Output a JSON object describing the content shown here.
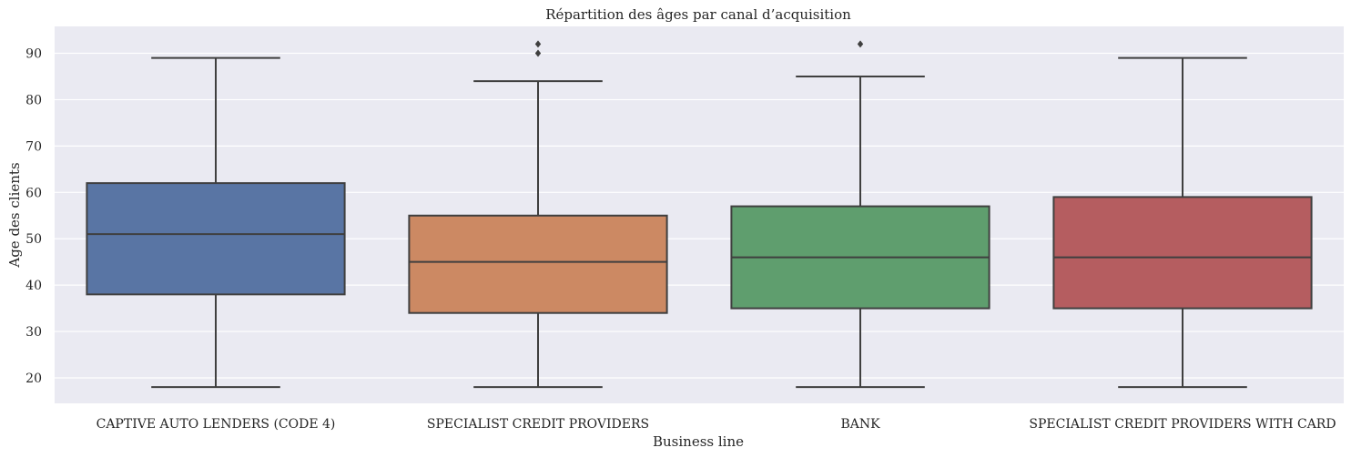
{
  "chart_data": {
    "type": "box",
    "title": "Répartition des âges par canal d’acquisition",
    "xlabel": "Business line",
    "ylabel": "Age des clients",
    "ylim": [
      14.5,
      95.8
    ],
    "yticks": [
      20,
      30,
      40,
      50,
      60,
      70,
      80,
      90
    ],
    "grid": true,
    "categories": [
      "CAPTIVE AUTO LENDERS (CODE 4)",
      "SPECIALIST CREDIT PROVIDERS",
      "BANK",
      "SPECIALIST CREDIT PROVIDERS WITH CARD"
    ],
    "colors": [
      "#5975a4",
      "#cc8963",
      "#5f9e6e",
      "#b55d60"
    ],
    "boxes": [
      {
        "category": "CAPTIVE AUTO LENDERS (CODE 4)",
        "whisker_low": 18,
        "q1": 38,
        "median": 51,
        "q3": 62,
        "whisker_high": 89,
        "outliers": []
      },
      {
        "category": "SPECIALIST CREDIT PROVIDERS",
        "whisker_low": 18,
        "q1": 34,
        "median": 45,
        "q3": 55,
        "whisker_high": 84,
        "outliers": [
          90,
          92
        ]
      },
      {
        "category": "BANK",
        "whisker_low": 18,
        "q1": 35,
        "median": 46,
        "q3": 57,
        "whisker_high": 85,
        "outliers": [
          92
        ]
      },
      {
        "category": "SPECIALIST CREDIT PROVIDERS WITH CARD",
        "whisker_low": 18,
        "q1": 35,
        "median": 46,
        "q3": 59,
        "whisker_high": 89,
        "outliers": []
      }
    ]
  }
}
